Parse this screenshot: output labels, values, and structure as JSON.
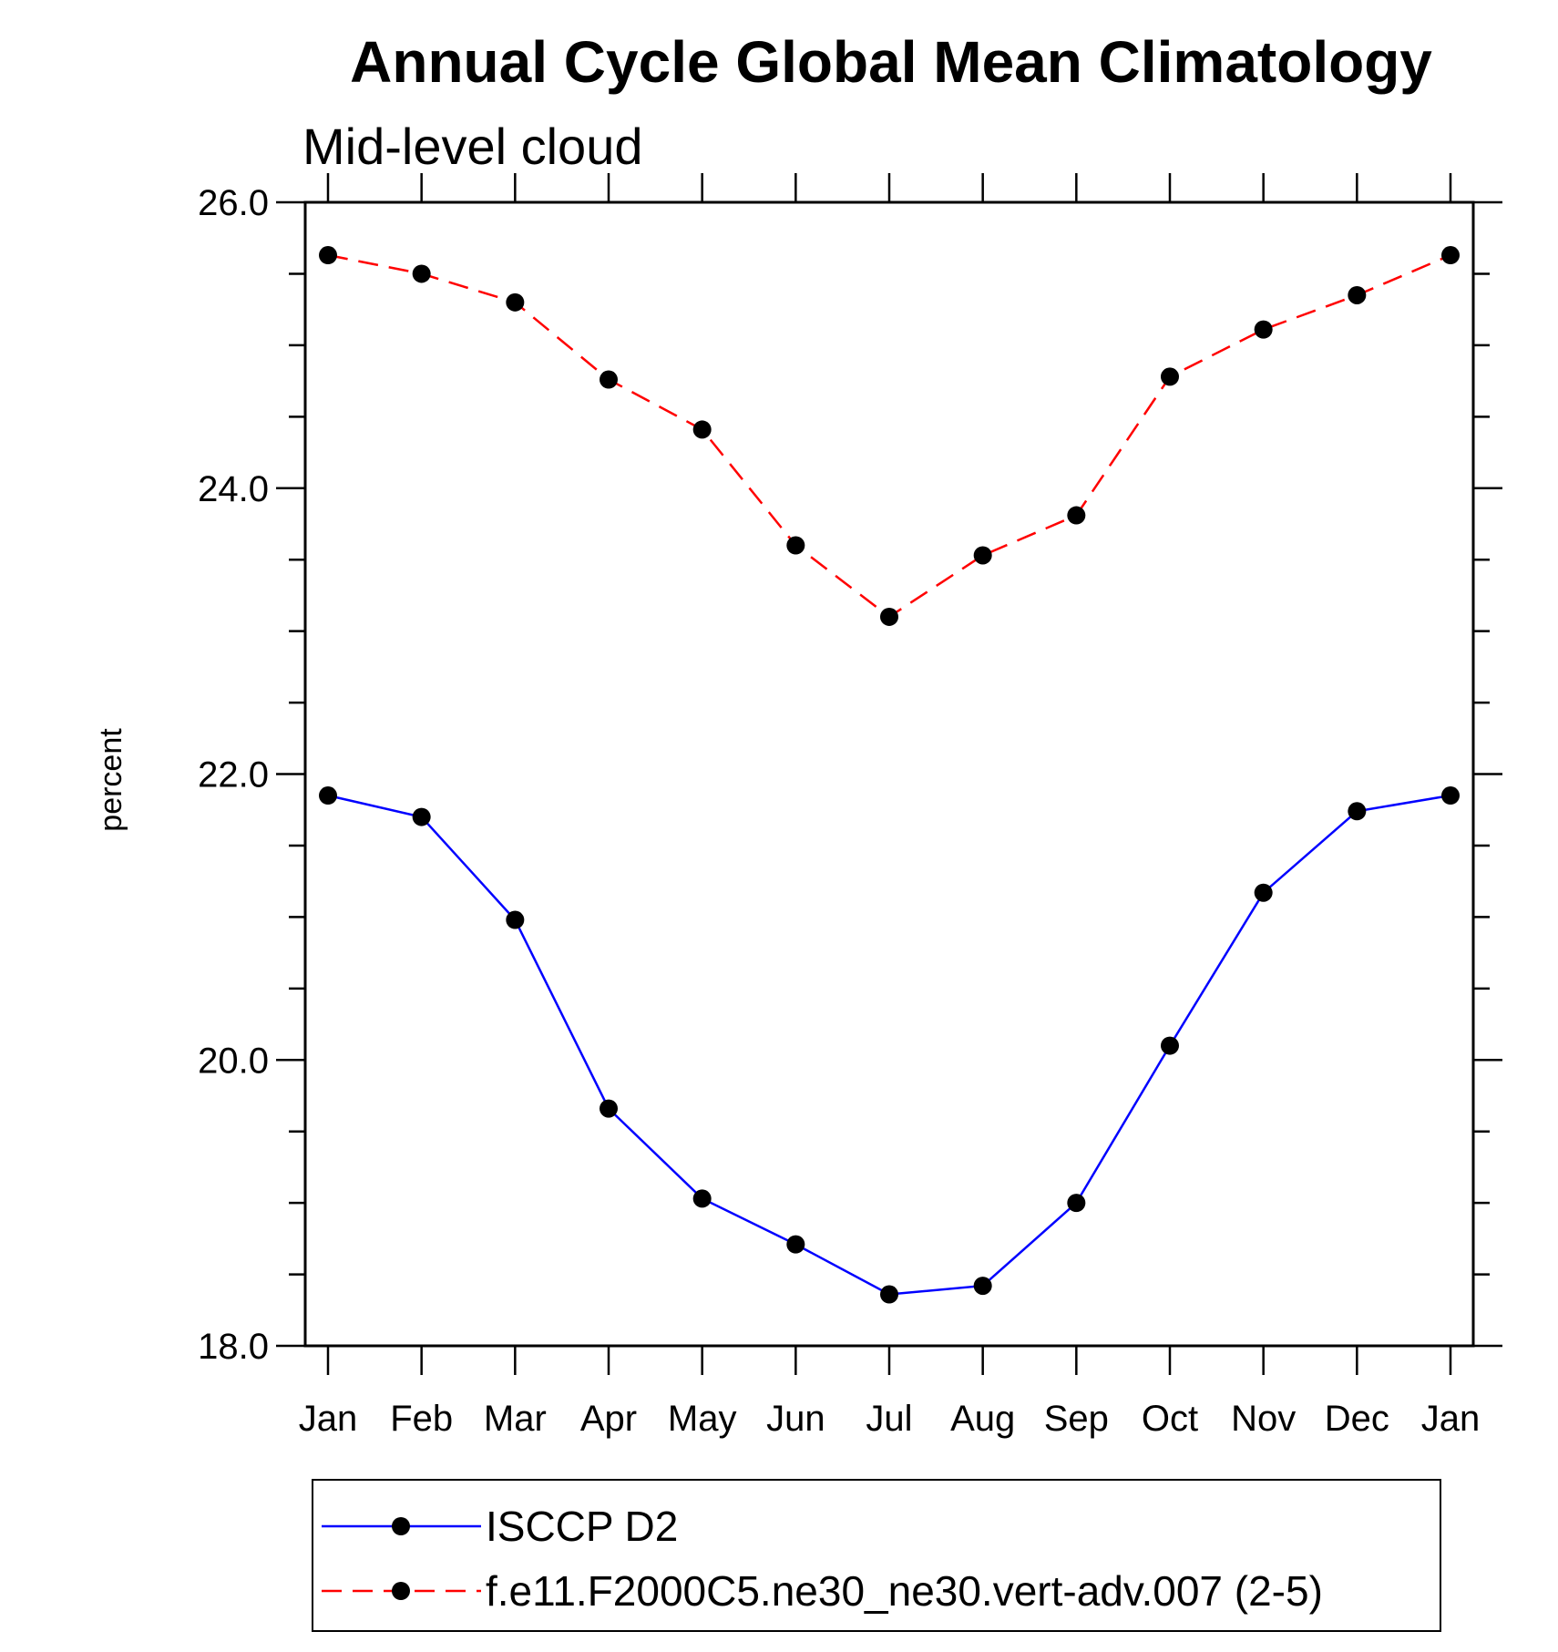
{
  "chart_data": {
    "type": "line",
    "title": "Annual Cycle Global Mean Climatology",
    "subtitle": "Mid-level cloud",
    "ylabel": "percent",
    "xlabel": "",
    "categories": [
      "Jan",
      "Feb",
      "Mar",
      "Apr",
      "May",
      "Jun",
      "Jul",
      "Aug",
      "Sep",
      "Oct",
      "Nov",
      "Dec",
      "Jan"
    ],
    "ylim": [
      18.0,
      26.0
    ],
    "yticks": [
      "18.0",
      "20.0",
      "22.0",
      "24.0",
      "26.0"
    ],
    "grid": false,
    "legend_position": "bottom",
    "series": [
      {
        "name": "ISCCP D2",
        "color": "#0000ff",
        "dash": "solid",
        "marker": "circle",
        "values": [
          21.85,
          21.7,
          20.98,
          19.66,
          19.03,
          18.71,
          18.36,
          18.42,
          19.0,
          20.1,
          21.17,
          21.74,
          21.85
        ]
      },
      {
        "name": "f.e11.F2000C5.ne30_ne30.vert-adv.007 (2-5)",
        "color": "#ff0000",
        "dash": "dashed",
        "marker": "circle",
        "values": [
          25.63,
          25.5,
          25.3,
          24.76,
          24.41,
          23.6,
          23.1,
          23.53,
          23.81,
          24.78,
          25.11,
          25.35,
          25.63
        ]
      }
    ]
  }
}
